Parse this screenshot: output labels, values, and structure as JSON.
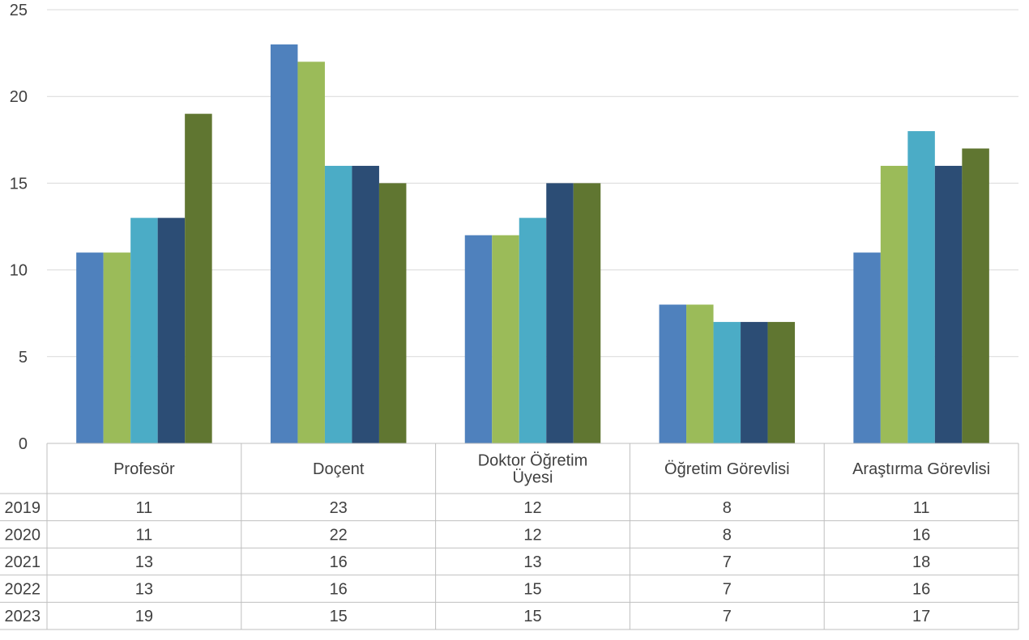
{
  "chart_data": {
    "type": "bar",
    "categories": [
      [
        "Profesör"
      ],
      [
        "Doçent"
      ],
      [
        "Doktor Öğretim",
        "Üyesi"
      ],
      [
        "Öğretim Görevlisi"
      ],
      [
        "Araştırma Görevlisi"
      ]
    ],
    "series": [
      {
        "name": "2019",
        "color": "#4F81BD",
        "values": [
          11,
          23,
          12,
          8,
          11
        ]
      },
      {
        "name": "2020",
        "color": "#9BBB59",
        "values": [
          11,
          22,
          12,
          8,
          16
        ]
      },
      {
        "name": "2021",
        "color": "#4BACC6",
        "values": [
          13,
          16,
          13,
          7,
          18
        ]
      },
      {
        "name": "2022",
        "color": "#2C4D75",
        "values": [
          13,
          16,
          15,
          7,
          16
        ]
      },
      {
        "name": "2023",
        "color": "#607631",
        "values": [
          19,
          15,
          15,
          7,
          17
        ]
      }
    ],
    "ylim": [
      0,
      25
    ],
    "yticks": [
      "0",
      "5",
      "10",
      "15",
      "20",
      "25"
    ],
    "grid": true,
    "legend": "data-table",
    "title": "",
    "xlabel": "",
    "ylabel": ""
  }
}
